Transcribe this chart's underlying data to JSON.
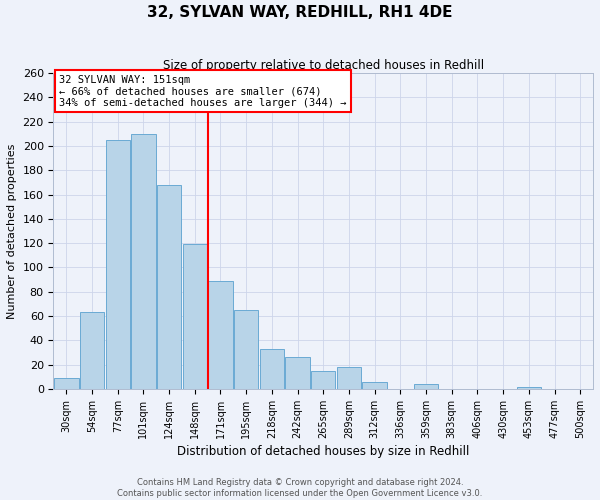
{
  "title": "32, SYLVAN WAY, REDHILL, RH1 4DE",
  "subtitle": "Size of property relative to detached houses in Redhill",
  "xlabel": "Distribution of detached houses by size in Redhill",
  "ylabel": "Number of detached properties",
  "categories": [
    "30sqm",
    "54sqm",
    "77sqm",
    "101sqm",
    "124sqm",
    "148sqm",
    "171sqm",
    "195sqm",
    "218sqm",
    "242sqm",
    "265sqm",
    "289sqm",
    "312sqm",
    "336sqm",
    "359sqm",
    "383sqm",
    "406sqm",
    "430sqm",
    "453sqm",
    "477sqm",
    "500sqm"
  ],
  "bar_values": [
    9,
    63,
    205,
    210,
    168,
    119,
    89,
    65,
    33,
    26,
    15,
    18,
    6,
    0,
    4,
    0,
    0,
    0,
    2,
    0,
    0
  ],
  "bar_color": "#b8d4e8",
  "bar_edge_color": "#6aaad4",
  "red_line_x": 5.5,
  "annotation_line1": "32 SYLVAN WAY: 151sqm",
  "annotation_line2": "← 66% of detached houses are smaller (674)",
  "annotation_line3": "34% of semi-detached houses are larger (344) →",
  "ylim": [
    0,
    260
  ],
  "yticks": [
    0,
    20,
    40,
    60,
    80,
    100,
    120,
    140,
    160,
    180,
    200,
    220,
    240,
    260
  ],
  "footer_line1": "Contains HM Land Registry data © Crown copyright and database right 2024.",
  "footer_line2": "Contains public sector information licensed under the Open Government Licence v3.0.",
  "background_color": "#eef2fa",
  "grid_color": "#cdd5ea"
}
